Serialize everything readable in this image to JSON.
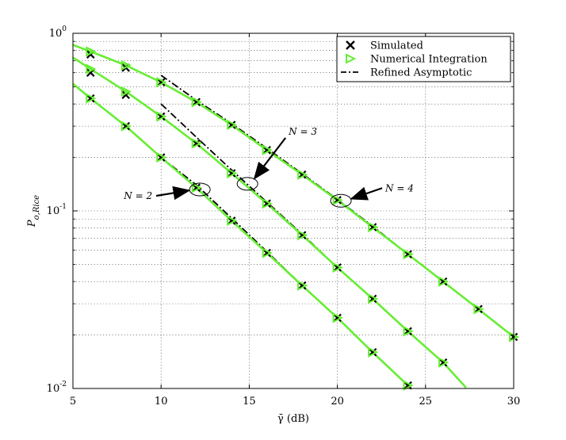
{
  "chart_data": {
    "type": "line",
    "title": "",
    "xlabel": "γ̄ (dB)",
    "ylabel": "P_{o,Rice}",
    "xlim": [
      5,
      30
    ],
    "ylim": [
      0.01,
      1
    ],
    "yscale": "log",
    "grid": true,
    "legend_position": "top-right",
    "x_ticks": [
      "5",
      "10",
      "15",
      "20",
      "25",
      "30"
    ],
    "y_ticks": [
      {
        "value": 1,
        "base": "10",
        "exp": "0"
      },
      {
        "value": 0.1,
        "base": "10",
        "exp": "-1"
      },
      {
        "value": 0.01,
        "base": "10",
        "exp": "-2"
      }
    ],
    "legend": [
      {
        "label": "Simulated",
        "marker": "x",
        "color": "#000000"
      },
      {
        "label": "Numerical Integration",
        "marker": "triangle-right",
        "color": "#66ee33"
      },
      {
        "label": "Refined Asymptotic",
        "marker": "dashdot",
        "color": "#000000"
      }
    ],
    "colors": {
      "numerical": "#66ee33",
      "simulated": "#000000",
      "asymptotic": "#000000"
    },
    "series": [
      {
        "group": "N = 2",
        "numerical": {
          "x": [
            5,
            6,
            8,
            10,
            12,
            14,
            16,
            18,
            20,
            22,
            24
          ],
          "y": [
            0.52,
            0.43,
            0.3,
            0.2,
            0.135,
            0.088,
            0.058,
            0.038,
            0.025,
            0.016,
            0.0104
          ]
        },
        "simulated": {
          "x": [
            6,
            8,
            10,
            12,
            14,
            16,
            18,
            20,
            22,
            24
          ],
          "y": [
            0.43,
            0.3,
            0.2,
            0.135,
            0.088,
            0.058,
            0.038,
            0.025,
            0.016,
            0.0104
          ]
        },
        "asymptotic": {
          "x": [
            10,
            12,
            14,
            16,
            18,
            20,
            22,
            24
          ],
          "y": [
            0.2,
            0.14,
            0.091,
            0.059,
            0.038,
            0.025,
            0.016,
            0.0104
          ]
        }
      },
      {
        "group": "N = 3",
        "numerical": {
          "x": [
            5,
            6,
            8,
            10,
            12,
            14,
            16,
            18,
            20,
            22,
            24,
            26,
            27.3
          ],
          "y": [
            0.73,
            0.63,
            0.47,
            0.34,
            0.24,
            0.163,
            0.11,
            0.073,
            0.048,
            0.032,
            0.021,
            0.014,
            0.0101
          ]
        },
        "simulated": {
          "x": [
            6,
            8,
            10,
            12,
            14,
            16,
            18,
            20,
            22,
            24,
            26
          ],
          "y": [
            0.6,
            0.45,
            0.34,
            0.24,
            0.163,
            0.11,
            0.073,
            0.048,
            0.032,
            0.021,
            0.014
          ]
        },
        "asymptotic": {
          "x": [
            10,
            12,
            14,
            16,
            18,
            20,
            22,
            24,
            26
          ],
          "y": [
            0.4,
            0.26,
            0.17,
            0.112,
            0.074,
            0.048,
            0.032,
            0.021,
            0.014
          ]
        }
      },
      {
        "group": "N = 4",
        "numerical": {
          "x": [
            5,
            6,
            8,
            10,
            12,
            14,
            16,
            18,
            20,
            22,
            24,
            26,
            28,
            30
          ],
          "y": [
            0.86,
            0.79,
            0.66,
            0.53,
            0.41,
            0.305,
            0.22,
            0.16,
            0.115,
            0.081,
            0.057,
            0.04,
            0.028,
            0.0195
          ]
        },
        "simulated": {
          "x": [
            6,
            8,
            10,
            12,
            14,
            16,
            18,
            20,
            22,
            24,
            26,
            28,
            30
          ],
          "y": [
            0.76,
            0.64,
            0.53,
            0.41,
            0.305,
            0.22,
            0.16,
            0.115,
            0.081,
            0.057,
            0.04,
            0.028,
            0.0195
          ]
        },
        "asymptotic": {
          "x": [
            10,
            12,
            14,
            16,
            18,
            20,
            22,
            24,
            26,
            28
          ],
          "y": [
            0.58,
            0.42,
            0.31,
            0.225,
            0.162,
            0.116,
            0.082,
            0.057,
            0.04,
            0.028
          ]
        }
      }
    ],
    "annotations": [
      {
        "text": "N = 2",
        "target_x": 12.2,
        "target_y": 0.132
      },
      {
        "text": "N = 3",
        "target_x": 14.9,
        "target_y": 0.142
      },
      {
        "text": "N = 4",
        "target_x": 20.2,
        "target_y": 0.114
      }
    ]
  }
}
